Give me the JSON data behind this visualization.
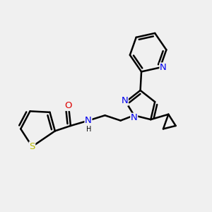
{
  "bg_color": "#f0f0f0",
  "bond_color": "#000000",
  "bond_width": 1.8,
  "atom_colors": {
    "N": "#0000ee",
    "O": "#dd0000",
    "S": "#bbbb00",
    "C": "#000000",
    "H": "#000000"
  },
  "font_size": 8.5,
  "fig_size": [
    3.0,
    3.0
  ],
  "dpi": 100
}
